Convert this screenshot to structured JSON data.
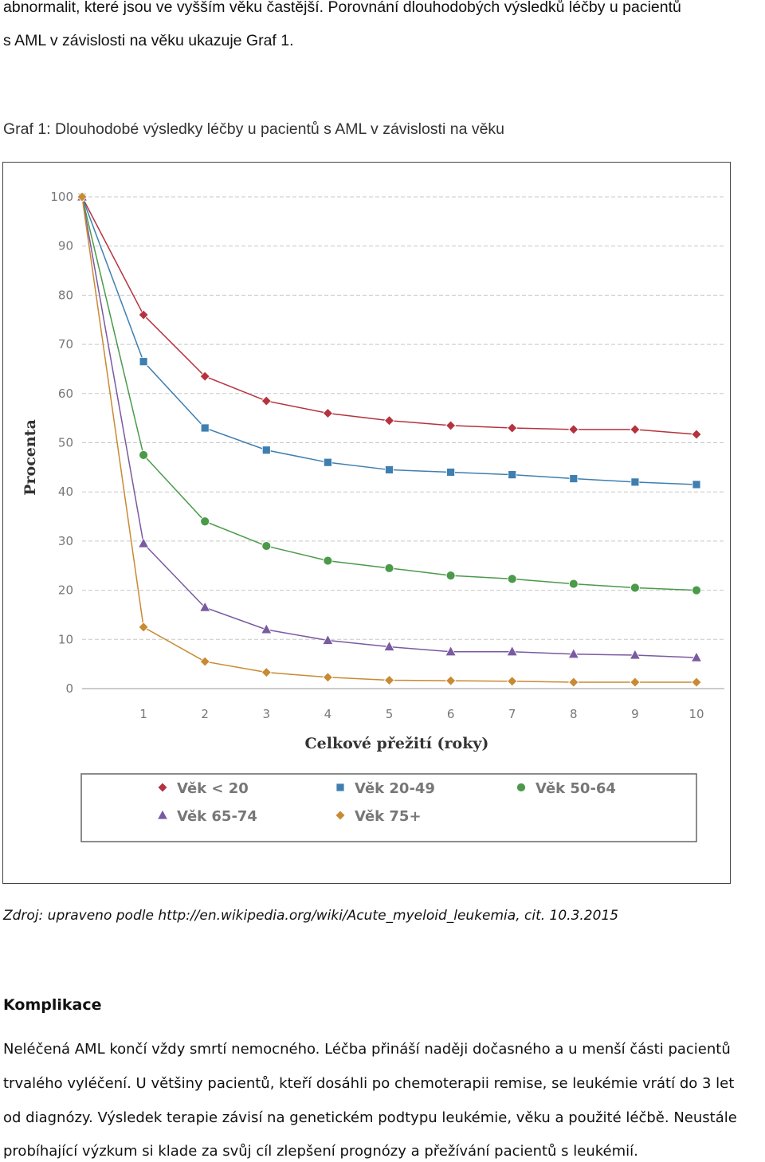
{
  "text": {
    "intro_line1": "abnormalit, které jsou ve vyšším věku častější. Porovnání dlouhodobých výsledků léčby u pacientů",
    "intro_line2": "s AML v závislosti na věku ukazuje Graf 1.",
    "caption": "Graf 1: Dlouhodobé výsledky léčby u pacientů s AML v závislosti na věku",
    "source": "Zdroj: upraveno podle http://en.wikipedia.org/wiki/Acute_myeloid_leukemia, cit. 10.3.2015",
    "heading": "Komplikace",
    "para_lines": [
      "Neléčená AML končí vždy smrtí nemocného. Léčba přináší naději dočasného a u menší části pacientů",
      "trvalého vyléčení. U většiny pacientů, kteří dosáhli po chemoterapii remise, se leukémie vrátí do 3 let",
      "od diagnózy. Výsledek terapie závisí na genetickém podtypu leukémie, věku a použité léčbě. Neustále",
      "probíhající výzkum si klade za svůj cíl zlepšení prognózy a přežívání pacientů s leukémií."
    ]
  },
  "chart_data": {
    "type": "line",
    "title": "",
    "xlabel": "Celkové přežití (roky)",
    "ylabel": "Procenta",
    "x": [
      0,
      1,
      2,
      3,
      4,
      5,
      6,
      7,
      8,
      9,
      10
    ],
    "x_tick_labels": [
      "1",
      "2",
      "3",
      "4",
      "5",
      "6",
      "7",
      "8",
      "9",
      "10"
    ],
    "y_tick_labels": [
      "0",
      "10",
      "20",
      "30",
      "40",
      "50",
      "60",
      "70",
      "80",
      "90",
      "100"
    ],
    "xlim": [
      0,
      10
    ],
    "ylim": [
      0,
      100
    ],
    "grid": "horizontal dashed",
    "legend_position": "bottom",
    "series": [
      {
        "name": "Věk < 20",
        "color": "#b5333f",
        "marker": "diamond",
        "values": [
          100,
          76,
          63.5,
          58.5,
          56,
          54.5,
          53.5,
          53,
          52.7,
          52.7,
          51.7
        ]
      },
      {
        "name": "Věk 20-49",
        "color": "#3f7fb0",
        "marker": "square",
        "values": [
          100,
          66.5,
          53,
          48.5,
          46,
          44.5,
          44,
          43.5,
          42.7,
          42,
          41.5
        ]
      },
      {
        "name": "Věk 50-64",
        "color": "#4a9a4a",
        "marker": "circle",
        "values": [
          100,
          47.5,
          34,
          29,
          26,
          24.5,
          23,
          22.3,
          21.3,
          20.5,
          20
        ]
      },
      {
        "name": "Věk 65-74",
        "color": "#7a5aa0",
        "marker": "triangle",
        "values": [
          100,
          29.5,
          16.5,
          12,
          9.8,
          8.5,
          7.5,
          7.5,
          7,
          6.8,
          6.3
        ]
      },
      {
        "name": "Věk 75+",
        "color": "#c88a33",
        "marker": "diamond",
        "values": [
          100,
          12.5,
          5.5,
          3.3,
          2.3,
          1.7,
          1.6,
          1.5,
          1.3,
          1.3,
          1.3
        ]
      }
    ]
  }
}
